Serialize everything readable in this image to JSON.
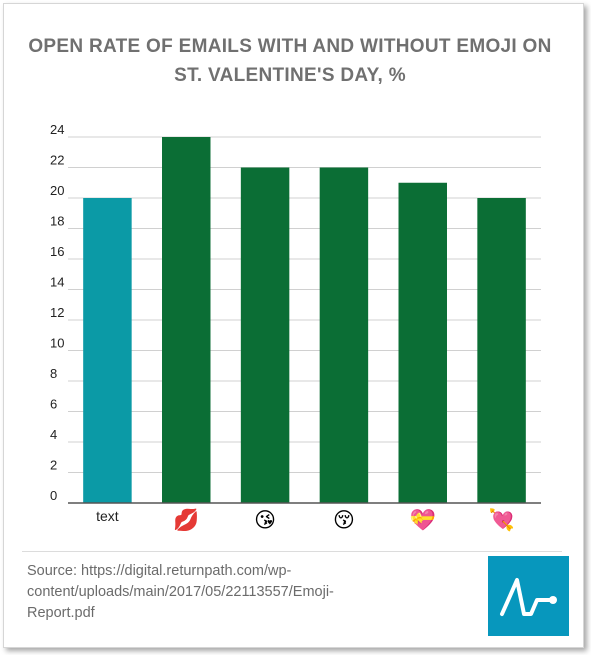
{
  "chart_data": {
    "type": "bar",
    "title": "OPEN RATE OF EMAILS WITH AND WITHOUT EMOJI ON ST. VALENTINE'S DAY, %",
    "categories": [
      "text",
      "💋",
      "😘",
      "😚",
      "💝",
      "💘"
    ],
    "category_icons": [
      "",
      "kiss-mark-icon",
      "face-blowing-kiss-icon",
      "kissing-face-closed-eyes-icon",
      "heart-with-ribbon-icon",
      "heart-with-arrow-icon"
    ],
    "values": [
      20,
      24,
      22,
      22,
      21,
      20
    ],
    "bar_colors": [
      "#0b9aa6",
      "#0b6e35",
      "#0b6e35",
      "#0b6e35",
      "#0b6e35",
      "#0b6e35"
    ],
    "xlabel": "",
    "ylabel": "",
    "ylim": [
      0,
      24
    ],
    "yticks": [
      0,
      2,
      4,
      6,
      8,
      10,
      12,
      14,
      16,
      18,
      20,
      22,
      24
    ],
    "grid": true,
    "legend": "none"
  },
  "source_text": "Source: https://digital.returnpath.com/wp-content/uploads/main/2017/05/22113557/Emoji-Report.pdf",
  "logo": {
    "icon": "pulse-line-icon",
    "background": "#0797bd"
  }
}
